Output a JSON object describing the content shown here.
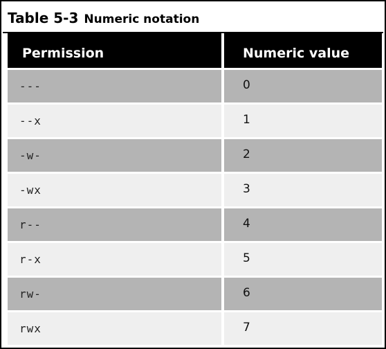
{
  "caption": {
    "table_number": "Table 5-3",
    "title": "Numeric notation"
  },
  "table": {
    "headers": [
      "Permission",
      "Numeric value"
    ],
    "rows": [
      {
        "permission": "---",
        "value": "0"
      },
      {
        "permission": "--x",
        "value": "1"
      },
      {
        "permission": "-w-",
        "value": "2"
      },
      {
        "permission": "-wx",
        "value": "3"
      },
      {
        "permission": "r--",
        "value": "4"
      },
      {
        "permission": "r-x",
        "value": "5"
      },
      {
        "permission": "rw-",
        "value": "6"
      },
      {
        "permission": "rwx",
        "value": "7"
      }
    ]
  },
  "colors": {
    "header_bg": "#000000",
    "header_text": "#ffffff",
    "row_dark": "#b4b4b4",
    "row_light": "#efefef"
  }
}
